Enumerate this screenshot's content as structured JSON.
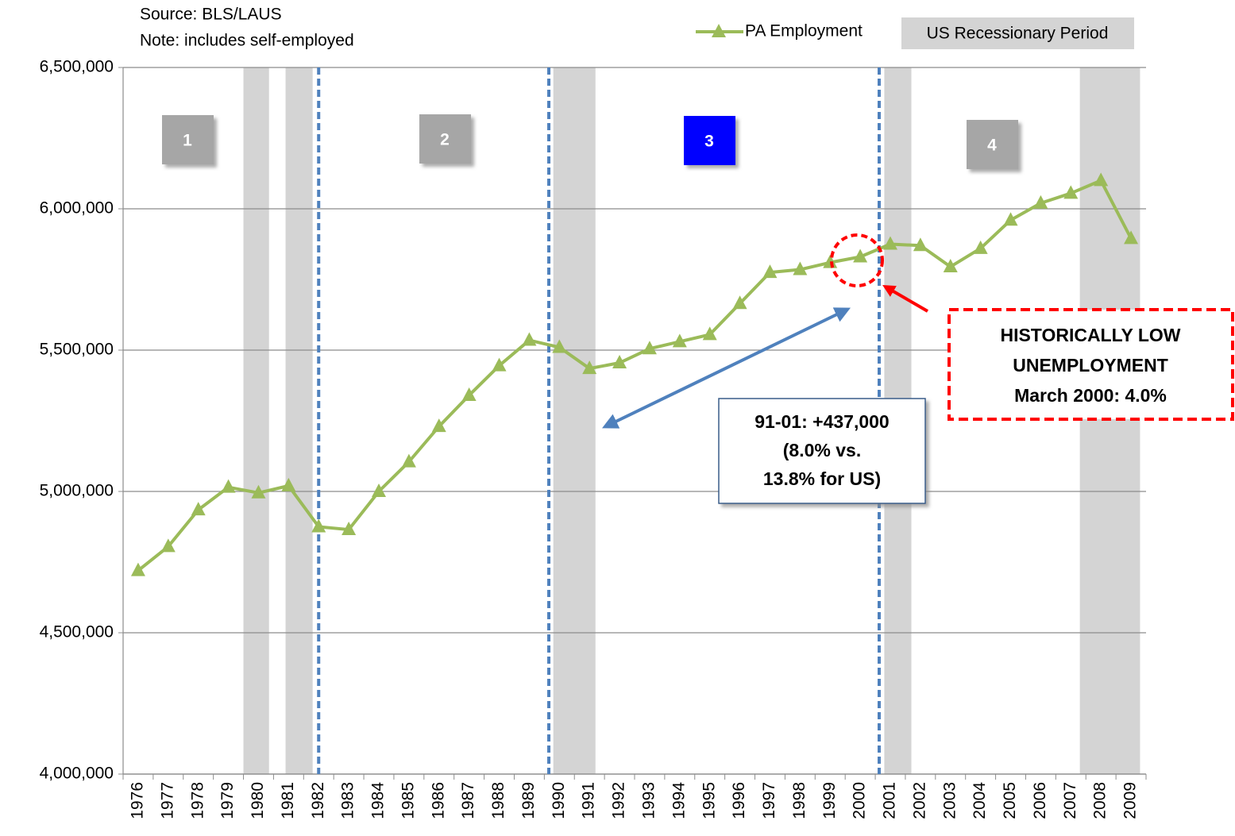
{
  "chart_data": {
    "type": "line",
    "source": "Source: BLS/LAUS",
    "note": "Note: includes self-employed",
    "categories": [
      "1976",
      "1977",
      "1978",
      "1979",
      "1980",
      "1981",
      "1982",
      "1983",
      "1984",
      "1985",
      "1986",
      "1987",
      "1988",
      "1989",
      "1990",
      "1991",
      "1992",
      "1993",
      "1994",
      "1995",
      "1996",
      "1997",
      "1998",
      "1999",
      "2000",
      "2001",
      "2002",
      "2003",
      "2004",
      "2005",
      "2006",
      "2007",
      "2008",
      "2009"
    ],
    "series": [
      {
        "name": "PA Employment",
        "color": "#9bbb59",
        "values": [
          4720000,
          4805000,
          4935000,
          5015000,
          4995000,
          5020000,
          4875000,
          4865000,
          5000000,
          5105000,
          5230000,
          5340000,
          5445000,
          5535000,
          5510000,
          5435000,
          5455000,
          5505000,
          5530000,
          5555000,
          5665000,
          5775000,
          5785000,
          5810000,
          5830000,
          5875000,
          5870000,
          5795000,
          5860000,
          5960000,
          6020000,
          6055000,
          6100000,
          5895000
        ]
      }
    ],
    "recession_legend": "US Recessionary Period",
    "recession_color": "#d4d4d4",
    "recessions": [
      [
        1980.0,
        1980.85
      ],
      [
        1981.4,
        1982.3
      ],
      [
        1990.3,
        1991.7
      ],
      [
        2001.3,
        2002.2
      ],
      [
        2007.8,
        2009.8
      ]
    ],
    "period_boundaries": [
      1982.5,
      1990.15,
      2001.13
    ],
    "period_labels": [
      "1",
      "2",
      "3",
      "4"
    ],
    "ylim": [
      4000000,
      6500000
    ],
    "yticks": [
      {
        "value": 4000000,
        "label": "4,000,000"
      },
      {
        "value": 4500000,
        "label": "4,500,000"
      },
      {
        "value": 5000000,
        "label": "5,000,000"
      },
      {
        "value": 5500000,
        "label": "5,500,000"
      },
      {
        "value": 6000000,
        "label": "6,000,000"
      },
      {
        "value": 6500000,
        "label": "6,500,000"
      }
    ],
    "grid": true,
    "annotations": {
      "growth": [
        "91-01: +437,000",
        "(8.0% vs.",
        "13.8% for US)"
      ],
      "low_unemployment": [
        "HISTORICALLY LOW",
        "UNEMPLOYMENT",
        "March 2000: 4.0%"
      ]
    }
  }
}
